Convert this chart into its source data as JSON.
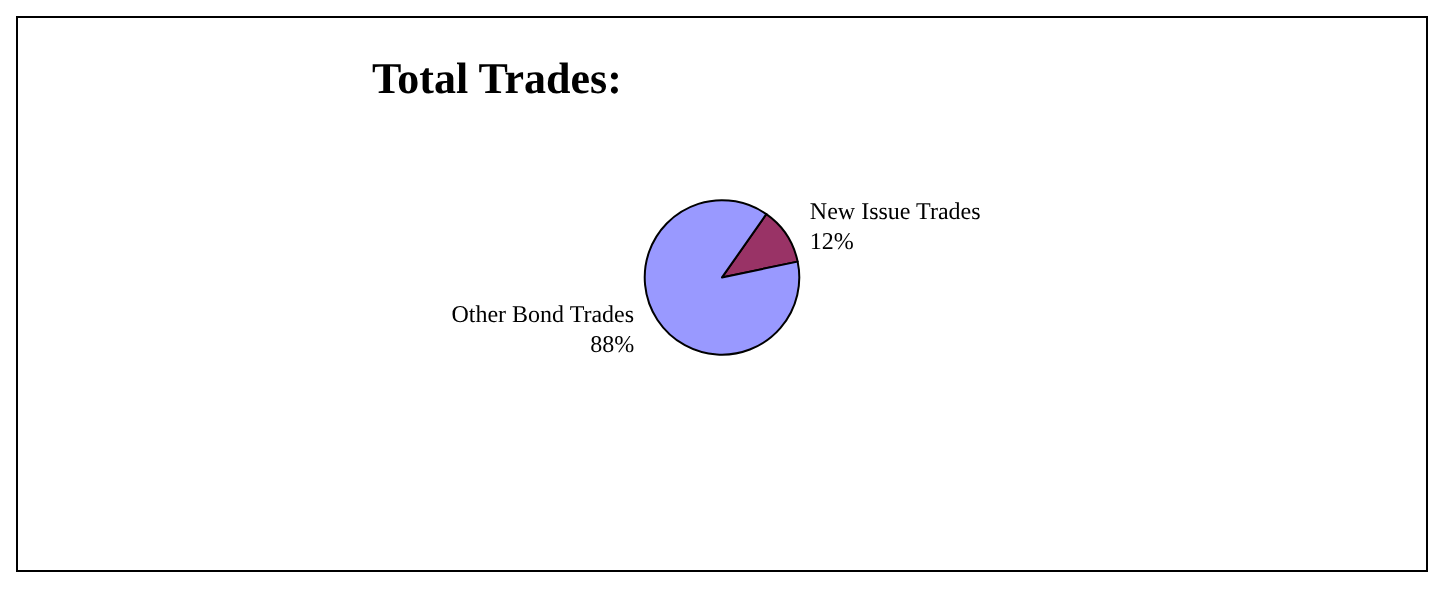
{
  "chart_data": {
    "type": "pie",
    "title": "Total Trades:",
    "categories": [
      "New Issue Trades",
      "Other Bond Trades"
    ],
    "values": [
      12,
      88
    ],
    "colors": [
      "#993366",
      "#9999ff"
    ],
    "value_labels": [
      "12%",
      "88%"
    ],
    "legend": false
  }
}
